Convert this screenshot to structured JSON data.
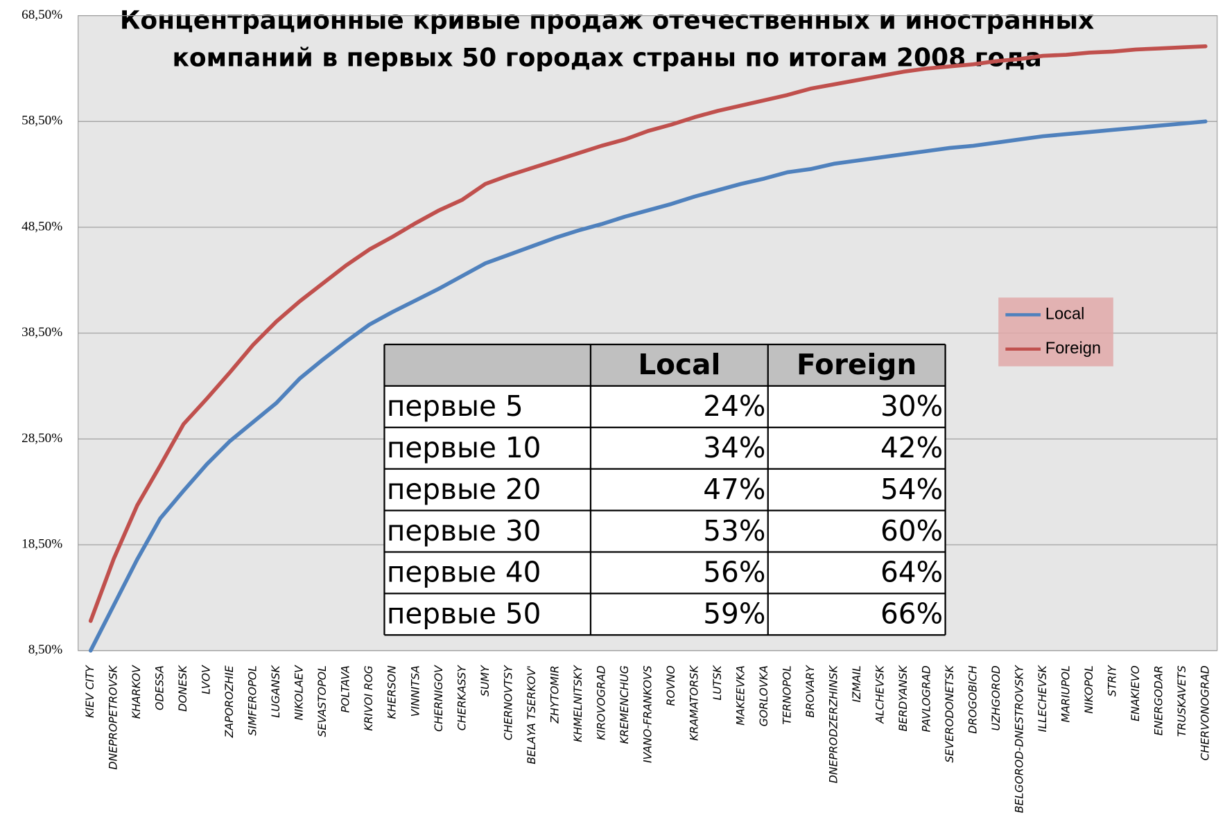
{
  "chart_data": {
    "type": "line",
    "title": [
      "Концентрационные кривые продаж отечественных и иностранных",
      "компаний в первых 50 городах страны по итогам 2008 года"
    ],
    "categories": [
      "KIEV CITY",
      "DNEPROPETROVSK",
      "KHARKOV",
      "ODESSA",
      "DONESK",
      "LVOV",
      "ZAPOROZHIE",
      "SIMFEROPOL",
      "LUGANSK",
      "NIKOLAEV",
      "SEVASTOPOL",
      "POLTAVA",
      "KRIVOI ROG",
      "KHERSON",
      "VINNITSA",
      "CHERNIGOV",
      "CHERKASSY",
      "SUMY",
      "CHERNOVTSY",
      "BELAYA TSERKOV'",
      "ZHYTOMIR",
      "KHMELNITSKY",
      "KIROVOGRAD",
      "KREMENCHUG",
      "IVANO-FRANKOVS",
      "ROVNO",
      "KRAMATORSK",
      "LUTSK",
      "MAKEEVKA",
      "GORLOVKA",
      "TERNOPOL",
      "BROVARY",
      "DNEPRODZERZHINSK",
      "IZMAIL",
      "ALCHEVSK",
      "BERDYANSK",
      "PAVLOGRAD",
      "SEVERODONETSK",
      "DROGOBICH",
      "UZHGOROD",
      "BELGOROD-DNESTROVSKY",
      "ILLECHEVSK",
      "MARIUPOL",
      "NIKOPOL",
      "STRIY",
      "ENAKIEVO",
      "ENERGODAR",
      "TRUSKAVETS",
      "CHERVONOGRAD"
    ],
    "series": [
      {
        "name": "Local",
        "color": "#4f81bd",
        "values": [
          8.5,
          12.8,
          17.1,
          21.0,
          23.6,
          26.1,
          28.3,
          30.1,
          31.9,
          34.2,
          36.0,
          37.7,
          39.3,
          40.5,
          41.6,
          42.7,
          43.9,
          45.1,
          45.9,
          46.7,
          47.5,
          48.2,
          48.8,
          49.5,
          50.1,
          50.7,
          51.4,
          52.0,
          52.6,
          53.1,
          53.7,
          54.0,
          54.5,
          54.8,
          55.1,
          55.4,
          55.7,
          56.0,
          56.2,
          56.5,
          56.8,
          57.1,
          57.3,
          57.5,
          57.7,
          57.9,
          58.1,
          58.3,
          58.5
        ]
      },
      {
        "name": "Foreign",
        "color": "#c0504d",
        "values": [
          11.3,
          17.2,
          22.2,
          26.0,
          29.9,
          32.3,
          34.8,
          37.4,
          39.6,
          41.5,
          43.2,
          44.9,
          46.4,
          47.6,
          48.9,
          50.1,
          51.1,
          52.6,
          53.4,
          54.1,
          54.8,
          55.5,
          56.2,
          56.8,
          57.6,
          58.2,
          58.9,
          59.5,
          60.0,
          60.5,
          61.0,
          61.6,
          62.0,
          62.4,
          62.8,
          63.2,
          63.5,
          63.7,
          63.9,
          64.2,
          64.4,
          64.7,
          64.8,
          65.0,
          65.1,
          65.3,
          65.4,
          65.5,
          65.6
        ]
      }
    ],
    "ylim": [
      8.5,
      68.5
    ],
    "yticks": [
      {
        "value": 8.5,
        "label": "8,50%"
      },
      {
        "value": 18.5,
        "label": "18,50%"
      },
      {
        "value": 28.5,
        "label": "28,50%"
      },
      {
        "value": 38.5,
        "label": "38,50%"
      },
      {
        "value": 48.5,
        "label": "48,50%"
      },
      {
        "value": 58.5,
        "label": "58,50%"
      },
      {
        "value": 68.5,
        "label": "68,50%"
      }
    ],
    "grid": true,
    "legend": "right",
    "table": {
      "columns": [
        "Local",
        "Foreign"
      ],
      "rows": [
        {
          "label": "первые 5",
          "values": [
            "24%",
            "30%"
          ]
        },
        {
          "label": "первые 10",
          "values": [
            "34%",
            "42%"
          ]
        },
        {
          "label": "первые 20",
          "values": [
            "47%",
            "54%"
          ]
        },
        {
          "label": "первые 30",
          "values": [
            "53%",
            "60%"
          ]
        },
        {
          "label": "первые 40",
          "values": [
            "56%",
            "64%"
          ]
        },
        {
          "label": "первые 50",
          "values": [
            "59%",
            "66%"
          ]
        }
      ]
    }
  }
}
